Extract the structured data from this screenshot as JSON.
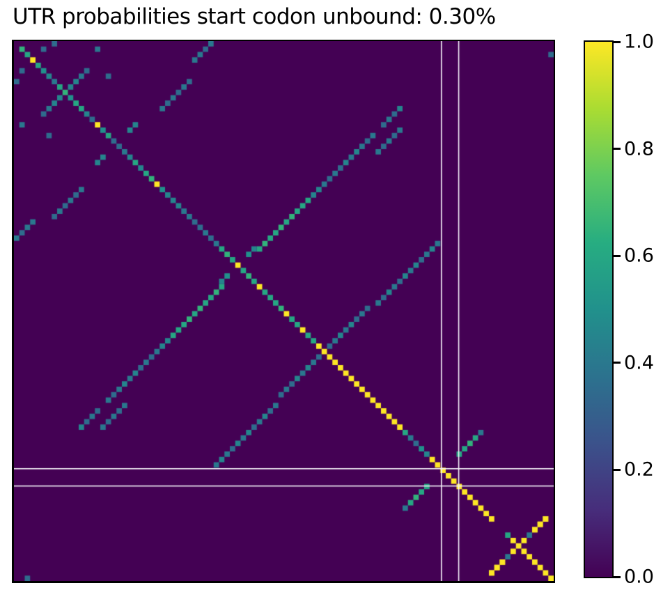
{
  "figure": {
    "title": "UTR probabilities start codon unbound: 0.30%",
    "background_color": "#ffffff",
    "frame_color": "#000000"
  },
  "chart_data": {
    "type": "heatmap",
    "title": "UTR probabilities start codon unbound: 0.30%",
    "n": 100,
    "value_range": [
      0,
      1
    ],
    "background_value": 0,
    "colormap": "viridis",
    "colormap_stops": [
      [
        0.0,
        "#440154"
      ],
      [
        0.125,
        "#472d7b"
      ],
      [
        0.25,
        "#3b528b"
      ],
      [
        0.375,
        "#2c728e"
      ],
      [
        0.5,
        "#21918c"
      ],
      [
        0.625,
        "#27ad81"
      ],
      [
        0.75,
        "#5ec962"
      ],
      [
        0.875,
        "#aadc32"
      ],
      [
        1.0,
        "#fde725"
      ]
    ],
    "symmetric": true,
    "diagonal_values": [
      0,
      0.65,
      0.6,
      1,
      0.6,
      0.5,
      0.45,
      0.4,
      0.6,
      0.65,
      0.5,
      0.6,
      0.6,
      0.45,
      0.35,
      1,
      0.5,
      0.6,
      0.35,
      0.35,
      0.4,
      0.45,
      0.6,
      0.45,
      0.6,
      0.65,
      1,
      0.5,
      0.45,
      0.45,
      0.45,
      0.4,
      0.4,
      0.35,
      0.35,
      0.4,
      0.35,
      0.4,
      0.6,
      0.65,
      0.6,
      1,
      0.6,
      0.65,
      0.6,
      1,
      0.6,
      0.6,
      0.6,
      0.65,
      1,
      0.6,
      0.6,
      1,
      0.6,
      0.6,
      1,
      1,
      1,
      1,
      1,
      1,
      1,
      1,
      1,
      1,
      1,
      1,
      1,
      1,
      1,
      1,
      0.6,
      0.4,
      0.35,
      0.5,
      0.45,
      1,
      1,
      1,
      1,
      1,
      1,
      1,
      1,
      1,
      1,
      1,
      1,
      0,
      0,
      0.6,
      1,
      1,
      1,
      1,
      1,
      1,
      1,
      1
    ],
    "pair_segments": [
      {
        "col": 10,
        "row": 8,
        "len": 4,
        "values": [
          0.45,
          0.45,
          0.4,
          0.35
        ]
      },
      {
        "col": 27,
        "row": 12,
        "len": 6,
        "values": [
          0.4,
          0.35,
          0.4,
          0.35,
          0.4,
          0.35
        ]
      },
      {
        "col": 21,
        "row": 16,
        "len": 2,
        "values": [
          0.45,
          0.45
        ]
      },
      {
        "col": 33,
        "row": 3,
        "len": 4,
        "values": [
          0.4,
          0.4,
          0.35,
          0.4
        ]
      },
      {
        "col": 5,
        "row": 1,
        "len": 1,
        "values": [
          0.35
        ]
      },
      {
        "col": 15,
        "row": 1,
        "len": 1,
        "values": [
          0.4
        ]
      },
      {
        "col": 7,
        "row": 0,
        "len": 1,
        "values": [
          0.35
        ]
      },
      {
        "col": 17,
        "row": 6,
        "len": 1,
        "values": [
          0.35
        ]
      },
      {
        "col": 45,
        "row": 38,
        "len": 8,
        "values": [
          0.6,
          0.65,
          0.6,
          0.6,
          0.65,
          0.6,
          0.65,
          0.6
        ]
      },
      {
        "col": 53,
        "row": 30,
        "len": 14,
        "values": [
          0.6,
          0.6,
          0.45,
          0.45,
          0.4,
          0.35,
          0.4,
          0.35,
          0.45,
          0.4,
          0.45,
          0.4,
          0.35,
          0.4
        ]
      },
      {
        "col": 58,
        "row": 56,
        "len": 8,
        "values": [
          0.35,
          0.4,
          0.45,
          0.4,
          0.45,
          0.35,
          0.4,
          0.35
        ]
      },
      {
        "col": 43,
        "row": 39,
        "len": 2,
        "values": [
          0.5,
          0.45
        ]
      },
      {
        "col": 67,
        "row": 20,
        "len": 5,
        "values": [
          0.4,
          0.35,
          0.4,
          0.35,
          0.4
        ]
      },
      {
        "col": 68,
        "row": 15,
        "len": 4,
        "values": [
          0.35,
          0.4,
          0.35,
          0.45
        ]
      },
      {
        "col": 67,
        "row": 48,
        "len": 12,
        "values": [
          0.4,
          0.35,
          0.45,
          0.4,
          0.35,
          0.45,
          0.4,
          0.45,
          0.35,
          0.4,
          0.45,
          0.4
        ]
      },
      {
        "col": 82,
        "row": 76,
        "len": 5,
        "values": [
          0.6,
          0.6,
          0.65,
          0.6,
          0.4
        ]
      },
      {
        "col": 88,
        "row": 98,
        "len": 3,
        "values": [
          1,
          1,
          1
        ]
      },
      {
        "col": 92,
        "row": 94,
        "len": 1,
        "values": [
          1
        ]
      },
      {
        "col": 96,
        "row": 90,
        "len": 3,
        "values": [
          1,
          1,
          1
        ]
      },
      {
        "col": 95,
        "row": 91,
        "len": 1,
        "values": [
          0.4
        ]
      },
      {
        "col": 99,
        "row": 2,
        "len": 1,
        "values": [
          0.35
        ]
      }
    ],
    "guide_lines": {
      "color": "#f6f2fa",
      "width": 1.6,
      "x": [
        79.2,
        82.4
      ],
      "y": [
        79.2,
        82.4
      ]
    },
    "colorbar": {
      "orientation": "vertical",
      "ticks": [
        {
          "label": "1.0",
          "value": 1.0
        },
        {
          "label": "0.8",
          "value": 0.8
        },
        {
          "label": "0.6",
          "value": 0.6
        },
        {
          "label": "0.4",
          "value": 0.4
        },
        {
          "label": "0.2",
          "value": 0.2
        },
        {
          "label": "0.0",
          "value": 0.0
        }
      ]
    },
    "axes": {
      "x_tick_labels": [],
      "y_tick_labels": [],
      "grid": false,
      "legend": false
    }
  }
}
